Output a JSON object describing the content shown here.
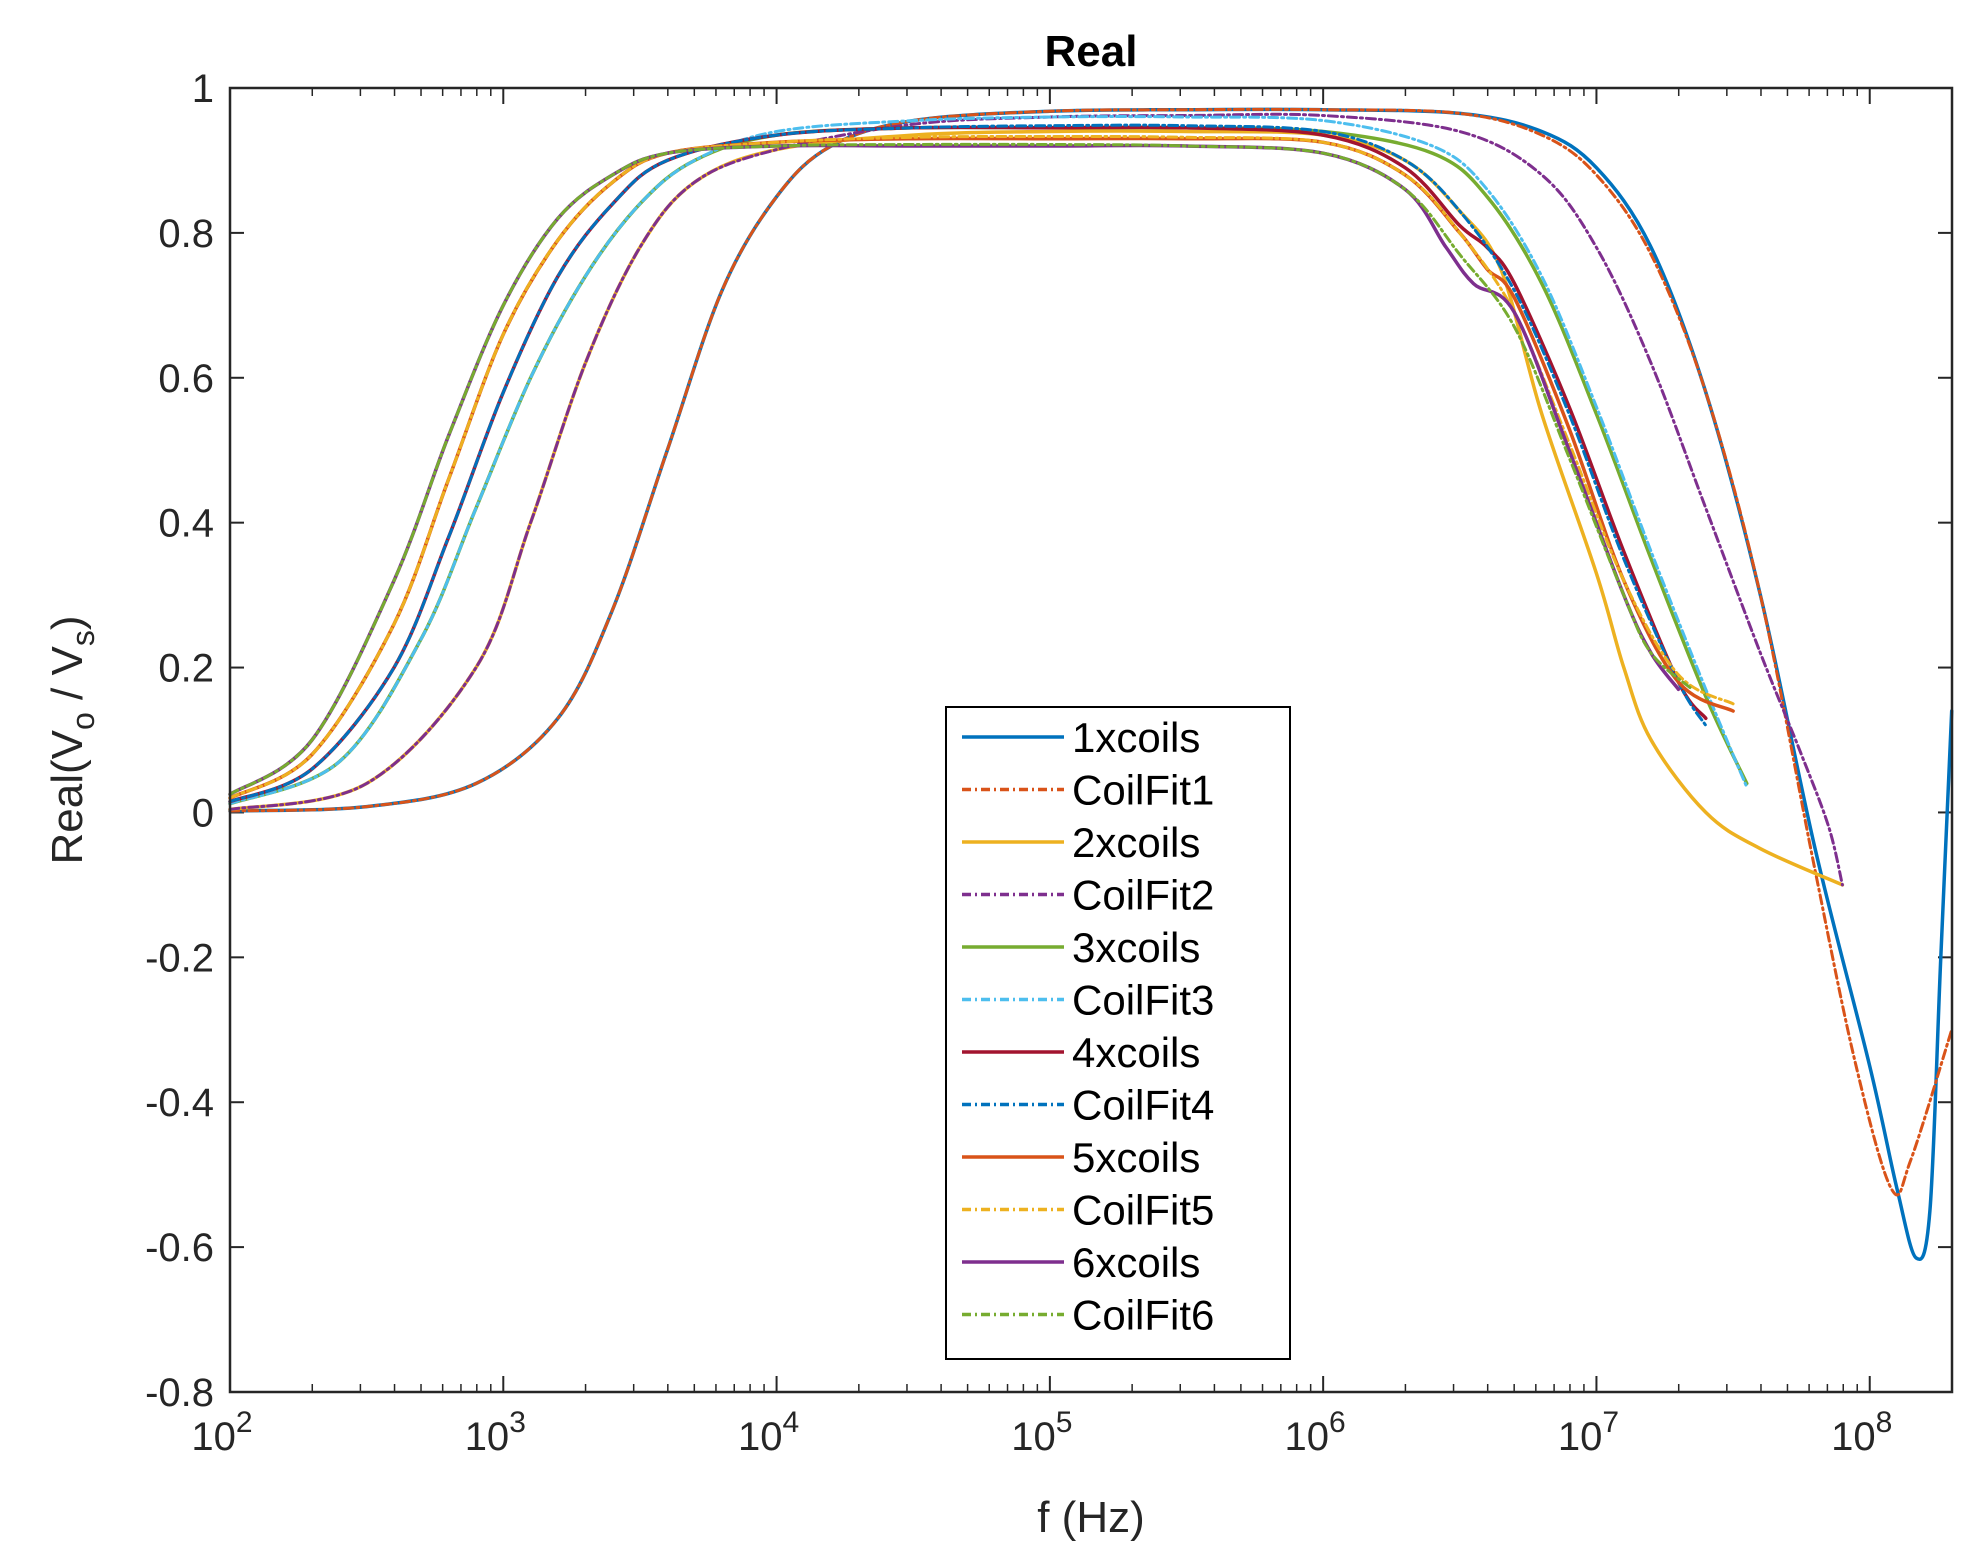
{
  "chart_data": {
    "type": "line",
    "title": "Real",
    "xlabel": "f (Hz)",
    "ylabel": {
      "main": "Real(V",
      "sub1": "o",
      "mid": " / V",
      "sub2": "s",
      "end": ")"
    },
    "xscale": "log",
    "xlim": [
      100,
      200000000
    ],
    "ylim": [
      -0.8,
      1.0
    ],
    "x_ticks": [
      {
        "base": "10",
        "exp": "2"
      },
      {
        "base": "10",
        "exp": "3"
      },
      {
        "base": "10",
        "exp": "4"
      },
      {
        "base": "10",
        "exp": "5"
      },
      {
        "base": "10",
        "exp": "6"
      },
      {
        "base": "10",
        "exp": "7"
      },
      {
        "base": "10",
        "exp": "8"
      }
    ],
    "y_ticks": [
      "-0.8",
      "-0.6",
      "-0.4",
      "-0.2",
      "0",
      "0.2",
      "0.4",
      "0.6",
      "0.8",
      "1"
    ],
    "legend_position": "center-bottom",
    "grid": false,
    "series": [
      {
        "name": "1xcoils",
        "color": "#0072BD",
        "dash": "solid",
        "points": [
          [
            2,
            0.002
          ],
          [
            2.5,
            0.008
          ],
          [
            2.9,
            0.04
          ],
          [
            3.2,
            0.13
          ],
          [
            3.4,
            0.28
          ],
          [
            3.6,
            0.5
          ],
          [
            3.8,
            0.72
          ],
          [
            4,
            0.85
          ],
          [
            4.2,
            0.92
          ],
          [
            4.5,
            0.955
          ],
          [
            5,
            0.968
          ],
          [
            5.5,
            0.97
          ],
          [
            6,
            0.97
          ],
          [
            6.5,
            0.965
          ],
          [
            6.8,
            0.94
          ],
          [
            7,
            0.89
          ],
          [
            7.2,
            0.78
          ],
          [
            7.4,
            0.58
          ],
          [
            7.6,
            0.3
          ],
          [
            7.8,
            -0.05
          ],
          [
            8,
            -0.35
          ],
          [
            8.1,
            -0.52
          ],
          [
            8.17,
            -0.615
          ],
          [
            8.22,
            -0.55
          ],
          [
            8.26,
            -0.2
          ],
          [
            8.3,
            0.14
          ]
        ]
      },
      {
        "name": "CoilFit1",
        "color": "#D95319",
        "dash": "dashdot",
        "points": [
          [
            2,
            0.002
          ],
          [
            2.5,
            0.008
          ],
          [
            2.9,
            0.04
          ],
          [
            3.2,
            0.13
          ],
          [
            3.4,
            0.28
          ],
          [
            3.6,
            0.5
          ],
          [
            3.8,
            0.72
          ],
          [
            4,
            0.85
          ],
          [
            4.2,
            0.92
          ],
          [
            4.5,
            0.955
          ],
          [
            5,
            0.968
          ],
          [
            5.5,
            0.97
          ],
          [
            6,
            0.97
          ],
          [
            6.5,
            0.965
          ],
          [
            6.8,
            0.935
          ],
          [
            7,
            0.88
          ],
          [
            7.2,
            0.77
          ],
          [
            7.4,
            0.58
          ],
          [
            7.6,
            0.3
          ],
          [
            7.8,
            -0.08
          ],
          [
            7.95,
            -0.35
          ],
          [
            8.08,
            -0.52
          ],
          [
            8.15,
            -0.48
          ],
          [
            8.3,
            -0.3
          ]
        ]
      },
      {
        "name": "2xcoils",
        "color": "#EDB120",
        "dash": "solid",
        "points": [
          [
            2,
            0.004
          ],
          [
            2.5,
            0.04
          ],
          [
            2.9,
            0.2
          ],
          [
            3.1,
            0.4
          ],
          [
            3.3,
            0.62
          ],
          [
            3.5,
            0.78
          ],
          [
            3.7,
            0.87
          ],
          [
            4,
            0.915
          ],
          [
            4.5,
            0.935
          ],
          [
            5,
            0.94
          ],
          [
            5.5,
            0.94
          ],
          [
            6,
            0.935
          ],
          [
            6.3,
            0.9
          ],
          [
            6.5,
            0.83
          ],
          [
            6.65,
            0.75
          ],
          [
            6.8,
            0.55
          ],
          [
            7,
            0.33
          ],
          [
            7.1,
            0.2
          ],
          [
            7.2,
            0.1
          ],
          [
            7.4,
            0.0
          ],
          [
            7.6,
            -0.05
          ],
          [
            7.9,
            -0.1
          ]
        ]
      },
      {
        "name": "CoilFit2",
        "color": "#7E2F8E",
        "dash": "dashdot",
        "points": [
          [
            2,
            0.004
          ],
          [
            2.5,
            0.04
          ],
          [
            2.9,
            0.2
          ],
          [
            3.1,
            0.4
          ],
          [
            3.3,
            0.62
          ],
          [
            3.5,
            0.78
          ],
          [
            3.7,
            0.87
          ],
          [
            4,
            0.915
          ],
          [
            4.5,
            0.95
          ],
          [
            5,
            0.96
          ],
          [
            5.5,
            0.962
          ],
          [
            6,
            0.962
          ],
          [
            6.5,
            0.94
          ],
          [
            6.8,
            0.88
          ],
          [
            7,
            0.78
          ],
          [
            7.2,
            0.62
          ],
          [
            7.4,
            0.42
          ],
          [
            7.6,
            0.22
          ],
          [
            7.75,
            0.08
          ],
          [
            7.85,
            -0.02
          ],
          [
            7.9,
            -0.1
          ]
        ]
      },
      {
        "name": "3xcoils",
        "color": "#77AC30",
        "dash": "solid",
        "points": [
          [
            2,
            0.012
          ],
          [
            2.4,
            0.07
          ],
          [
            2.7,
            0.24
          ],
          [
            2.9,
            0.42
          ],
          [
            3.1,
            0.6
          ],
          [
            3.3,
            0.74
          ],
          [
            3.5,
            0.84
          ],
          [
            3.7,
            0.9
          ],
          [
            4,
            0.935
          ],
          [
            4.5,
            0.945
          ],
          [
            5,
            0.945
          ],
          [
            5.5,
            0.945
          ],
          [
            6,
            0.94
          ],
          [
            6.4,
            0.91
          ],
          [
            6.6,
            0.85
          ],
          [
            6.8,
            0.73
          ],
          [
            7,
            0.55
          ],
          [
            7.2,
            0.35
          ],
          [
            7.4,
            0.16
          ],
          [
            7.55,
            0.04
          ]
        ]
      },
      {
        "name": "CoilFit3",
        "color": "#4DBEEE",
        "dash": "dashdot",
        "points": [
          [
            2,
            0.012
          ],
          [
            2.4,
            0.07
          ],
          [
            2.7,
            0.24
          ],
          [
            2.9,
            0.42
          ],
          [
            3.1,
            0.6
          ],
          [
            3.3,
            0.74
          ],
          [
            3.5,
            0.84
          ],
          [
            3.7,
            0.9
          ],
          [
            4,
            0.94
          ],
          [
            4.5,
            0.955
          ],
          [
            5,
            0.96
          ],
          [
            5.5,
            0.96
          ],
          [
            6,
            0.955
          ],
          [
            6.4,
            0.92
          ],
          [
            6.6,
            0.86
          ],
          [
            6.8,
            0.74
          ],
          [
            7,
            0.56
          ],
          [
            7.2,
            0.36
          ],
          [
            7.4,
            0.17
          ],
          [
            7.55,
            0.035
          ]
        ]
      },
      {
        "name": "4xcoils",
        "color": "#A2142F",
        "dash": "solid",
        "points": [
          [
            2,
            0.015
          ],
          [
            2.3,
            0.06
          ],
          [
            2.6,
            0.2
          ],
          [
            2.8,
            0.38
          ],
          [
            3,
            0.58
          ],
          [
            3.2,
            0.74
          ],
          [
            3.4,
            0.84
          ],
          [
            3.6,
            0.9
          ],
          [
            4,
            0.935
          ],
          [
            4.5,
            0.945
          ],
          [
            5,
            0.945
          ],
          [
            5.5,
            0.945
          ],
          [
            6,
            0.935
          ],
          [
            6.3,
            0.89
          ],
          [
            6.5,
            0.81
          ],
          [
            6.6,
            0.78
          ],
          [
            6.7,
            0.73
          ],
          [
            6.9,
            0.56
          ],
          [
            7.1,
            0.36
          ],
          [
            7.3,
            0.18
          ],
          [
            7.4,
            0.13
          ]
        ]
      },
      {
        "name": "CoilFit4",
        "color": "#0072BD",
        "dash": "dashdot",
        "points": [
          [
            2,
            0.015
          ],
          [
            2.3,
            0.06
          ],
          [
            2.6,
            0.2
          ],
          [
            2.8,
            0.38
          ],
          [
            3,
            0.58
          ],
          [
            3.2,
            0.74
          ],
          [
            3.4,
            0.84
          ],
          [
            3.6,
            0.9
          ],
          [
            4,
            0.935
          ],
          [
            4.5,
            0.945
          ],
          [
            5,
            0.948
          ],
          [
            5.5,
            0.948
          ],
          [
            6,
            0.94
          ],
          [
            6.3,
            0.9
          ],
          [
            6.5,
            0.83
          ],
          [
            6.7,
            0.72
          ],
          [
            6.9,
            0.55
          ],
          [
            7.1,
            0.35
          ],
          [
            7.3,
            0.18
          ],
          [
            7.4,
            0.12
          ]
        ]
      },
      {
        "name": "5xcoils",
        "color": "#D95319",
        "dash": "solid",
        "points": [
          [
            2,
            0.02
          ],
          [
            2.3,
            0.08
          ],
          [
            2.6,
            0.26
          ],
          [
            2.8,
            0.46
          ],
          [
            3,
            0.66
          ],
          [
            3.2,
            0.79
          ],
          [
            3.4,
            0.87
          ],
          [
            3.6,
            0.91
          ],
          [
            4,
            0.925
          ],
          [
            4.5,
            0.93
          ],
          [
            5,
            0.93
          ],
          [
            5.5,
            0.93
          ],
          [
            6,
            0.925
          ],
          [
            6.3,
            0.88
          ],
          [
            6.5,
            0.8
          ],
          [
            6.6,
            0.75
          ],
          [
            6.7,
            0.71
          ],
          [
            6.9,
            0.53
          ],
          [
            7.1,
            0.32
          ],
          [
            7.3,
            0.18
          ],
          [
            7.5,
            0.14
          ]
        ]
      },
      {
        "name": "CoilFit5",
        "color": "#EDB120",
        "dash": "dashdot",
        "points": [
          [
            2,
            0.02
          ],
          [
            2.3,
            0.08
          ],
          [
            2.6,
            0.26
          ],
          [
            2.8,
            0.46
          ],
          [
            3,
            0.66
          ],
          [
            3.2,
            0.79
          ],
          [
            3.4,
            0.87
          ],
          [
            3.6,
            0.91
          ],
          [
            4,
            0.925
          ],
          [
            4.5,
            0.932
          ],
          [
            5,
            0.933
          ],
          [
            5.5,
            0.932
          ],
          [
            6,
            0.925
          ],
          [
            6.3,
            0.88
          ],
          [
            6.5,
            0.8
          ],
          [
            6.7,
            0.69
          ],
          [
            6.9,
            0.51
          ],
          [
            7.1,
            0.32
          ],
          [
            7.3,
            0.19
          ],
          [
            7.5,
            0.15
          ]
        ]
      },
      {
        "name": "6xcoils",
        "color": "#7E2F8E",
        "dash": "solid",
        "points": [
          [
            2,
            0.025
          ],
          [
            2.3,
            0.1
          ],
          [
            2.6,
            0.32
          ],
          [
            2.8,
            0.52
          ],
          [
            3,
            0.7
          ],
          [
            3.2,
            0.82
          ],
          [
            3.4,
            0.88
          ],
          [
            3.6,
            0.91
          ],
          [
            4,
            0.92
          ],
          [
            4.5,
            0.92
          ],
          [
            5,
            0.92
          ],
          [
            5.5,
            0.92
          ],
          [
            6,
            0.91
          ],
          [
            6.3,
            0.86
          ],
          [
            6.45,
            0.78
          ],
          [
            6.55,
            0.73
          ],
          [
            6.7,
            0.69
          ],
          [
            6.9,
            0.5
          ],
          [
            7.1,
            0.3
          ],
          [
            7.2,
            0.22
          ],
          [
            7.3,
            0.17
          ]
        ]
      },
      {
        "name": "CoilFit6",
        "color": "#77AC30",
        "dash": "dashdot",
        "points": [
          [
            2,
            0.025
          ],
          [
            2.3,
            0.1
          ],
          [
            2.6,
            0.32
          ],
          [
            2.8,
            0.52
          ],
          [
            3,
            0.7
          ],
          [
            3.2,
            0.82
          ],
          [
            3.4,
            0.88
          ],
          [
            3.6,
            0.91
          ],
          [
            4,
            0.92
          ],
          [
            4.5,
            0.922
          ],
          [
            5,
            0.922
          ],
          [
            5.5,
            0.92
          ],
          [
            6,
            0.91
          ],
          [
            6.3,
            0.86
          ],
          [
            6.5,
            0.77
          ],
          [
            6.7,
            0.67
          ],
          [
            6.9,
            0.49
          ],
          [
            7.1,
            0.3
          ],
          [
            7.2,
            0.22
          ],
          [
            7.35,
            0.17
          ]
        ]
      }
    ]
  }
}
